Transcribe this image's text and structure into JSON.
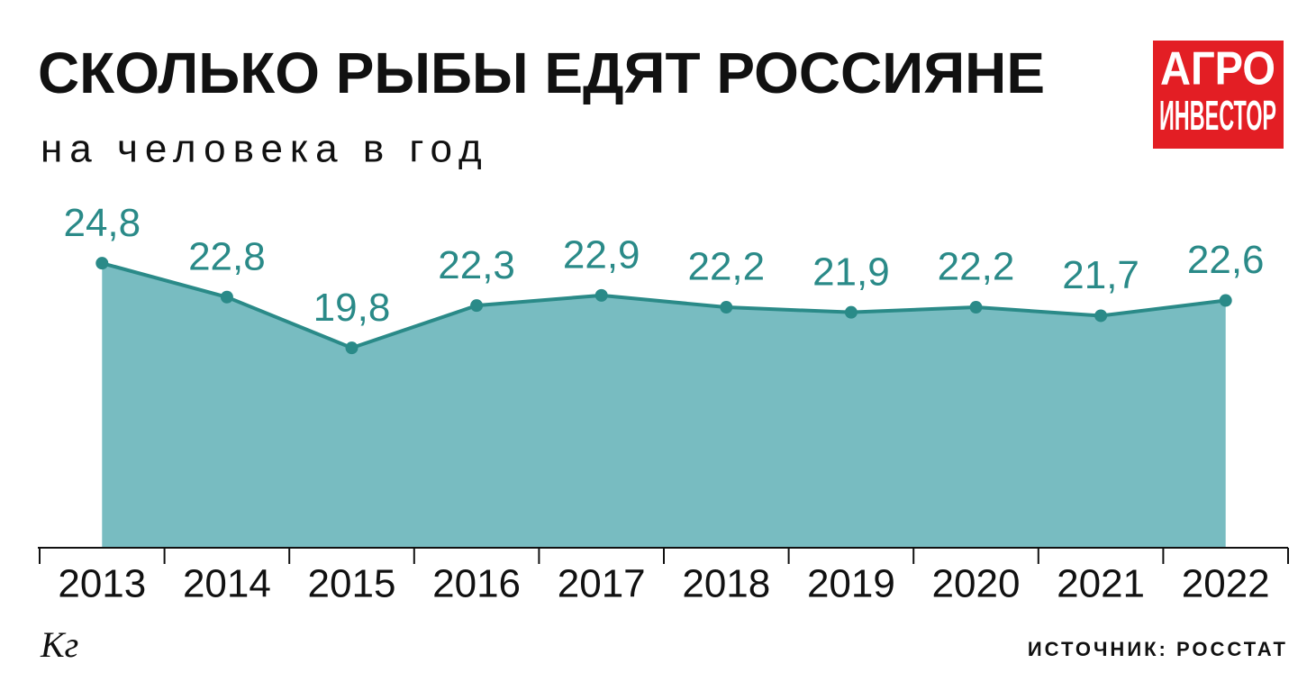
{
  "chart_data": {
    "type": "area",
    "title": "СКОЛЬКО РЫБЫ ЕДЯТ РОССИЯНЕ",
    "subtitle": "на человека в год",
    "unit_label": "Кг",
    "source": "ИСТОЧНИК: РОССТАТ",
    "logo": [
      "АГРО",
      "ИНВЕСТОР"
    ],
    "categories": [
      "2013",
      "2014",
      "2015",
      "2016",
      "2017",
      "2018",
      "2019",
      "2020",
      "2021",
      "2022"
    ],
    "values": [
      24.8,
      22.8,
      19.8,
      22.3,
      22.9,
      22.2,
      21.9,
      22.2,
      21.7,
      22.6
    ],
    "value_labels": [
      "24,8",
      "22,8",
      "19,8",
      "22,3",
      "22,9",
      "22,2",
      "21,9",
      "22,2",
      "21,7",
      "22,6"
    ],
    "color": "#2a8a88",
    "fill_color": "#78bcc1",
    "ylim": [
      8,
      33
    ]
  }
}
